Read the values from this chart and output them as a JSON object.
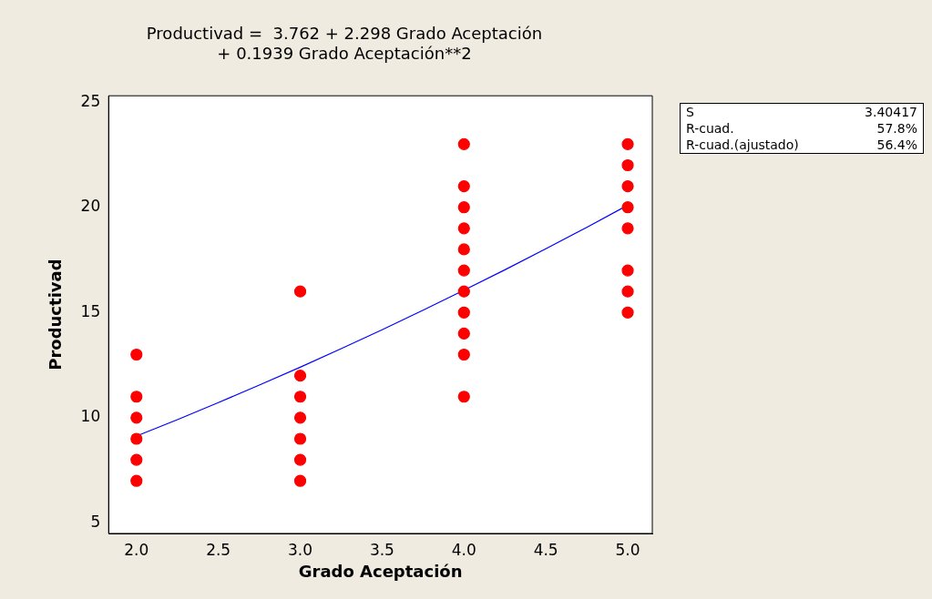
{
  "chart_data": {
    "type": "scatter",
    "title": "Productivad =  3.762 + 2.298 Grado Aceptación",
    "subtitle": "+ 0.1939 Grado Aceptación**2",
    "xlabel": "Grado Aceptación",
    "ylabel": "Productivad",
    "xlim": [
      1.83,
      5.15
    ],
    "xticks": [
      {
        "value": 2,
        "label": "2.0"
      },
      {
        "value": 2.5,
        "label": "2.5"
      },
      {
        "value": 3,
        "label": "3.0"
      },
      {
        "value": 3.5,
        "label": "3.5"
      },
      {
        "value": 4,
        "label": "4.0"
      },
      {
        "value": 4.5,
        "label": "4.5"
      },
      {
        "value": 5,
        "label": "5.0"
      }
    ],
    "ylim": [
      4.5,
      25.3
    ],
    "yticks": [
      5,
      10,
      15,
      20,
      25
    ],
    "grid": false,
    "legend": false,
    "marker": "circle",
    "series": [
      {
        "color": "#ff0000",
        "x": [
          2,
          2,
          2,
          2,
          2,
          2,
          3,
          3,
          3,
          3,
          3,
          3,
          3,
          4,
          4,
          4,
          4,
          4,
          4,
          4,
          4,
          4,
          4,
          4,
          5,
          5,
          5,
          5,
          5,
          5,
          5,
          5
        ],
        "values": [
          13,
          11,
          10,
          9,
          8,
          7,
          16,
          12,
          11,
          10,
          9,
          8,
          7,
          23,
          21,
          20,
          19,
          18,
          17,
          16,
          15,
          14,
          13,
          11,
          23,
          22,
          21,
          20,
          19,
          17,
          16,
          15
        ]
      },
      {
        "type": "line",
        "color": "#0000ff",
        "marker": "none",
        "x": [
          2,
          2.25,
          2.5,
          2.75,
          3,
          3.25,
          3.5,
          3.75,
          4,
          4.25,
          4.5,
          4.75,
          5
        ],
        "values": [
          9.13,
          9.91,
          10.72,
          11.55,
          12.4,
          13.28,
          14.18,
          15.11,
          16.06,
          17.03,
          18.03,
          19.05,
          20.1
        ]
      }
    ],
    "annotations": [
      "S 3.40417",
      "R-cuad. 57.8%",
      "R-cuad.(ajustado) 56.4%"
    ]
  }
}
